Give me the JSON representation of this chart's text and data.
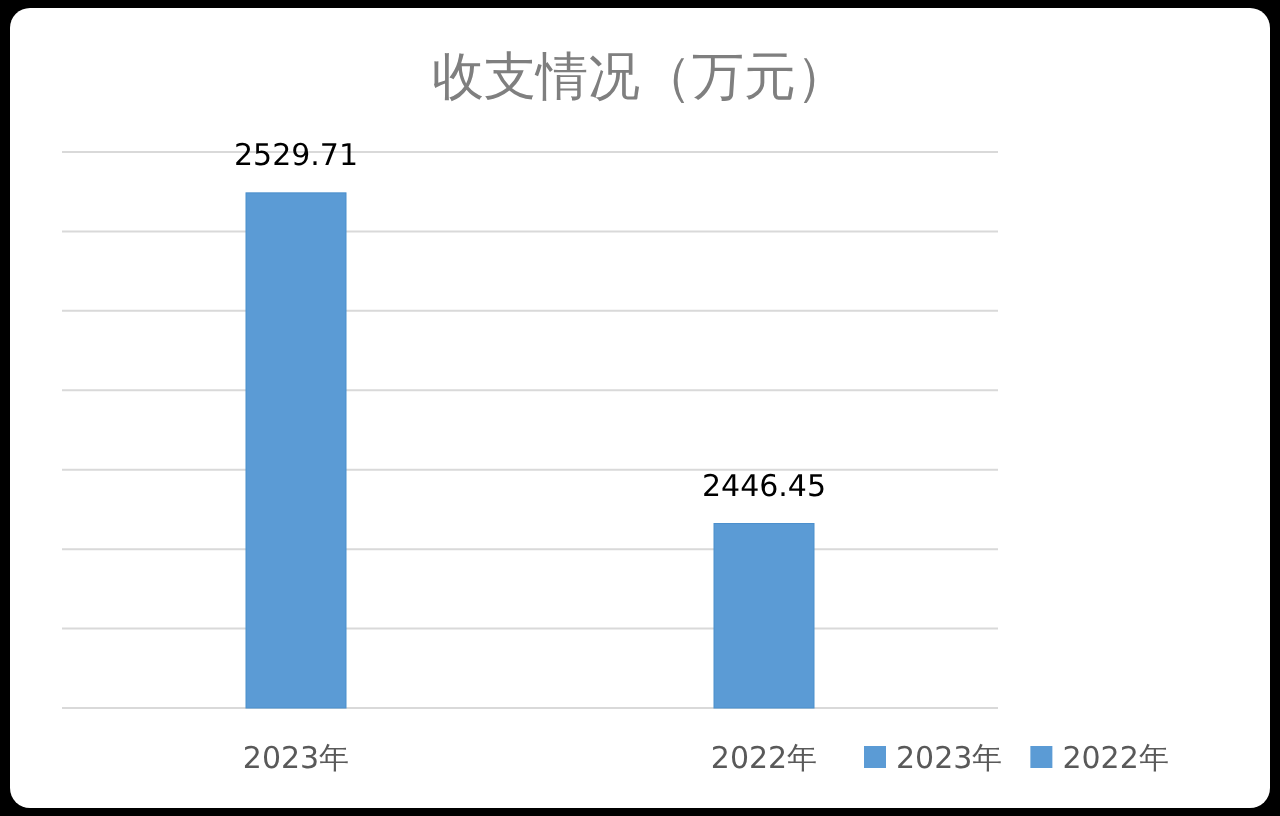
{
  "chart_data": {
    "type": "bar",
    "title": "收支情况（万元）",
    "categories": [
      "2023年",
      "2022年"
    ],
    "series": [
      {
        "name": "2023年",
        "color": "#5b9bd5",
        "values": [
          2529.71,
          null
        ]
      },
      {
        "name": "2022年",
        "color": "#5b9bd5",
        "values": [
          null,
          2446.45
        ]
      }
    ],
    "ylim": [
      2400,
      2540
    ],
    "yticks": [
      {
        "value": 2400,
        "label": null
      },
      {
        "value": 2420,
        "label": null
      },
      {
        "value": 2440,
        "label": null
      },
      {
        "value": 2460,
        "label": null
      },
      {
        "value": 2480,
        "label": null
      },
      {
        "value": 2500,
        "label": null
      },
      {
        "value": 2520,
        "label": null
      },
      {
        "value": 2540,
        "label": null
      }
    ],
    "grid": true,
    "tick_labels": "x",
    "data_labels": true,
    "legend": "bottom right"
  }
}
